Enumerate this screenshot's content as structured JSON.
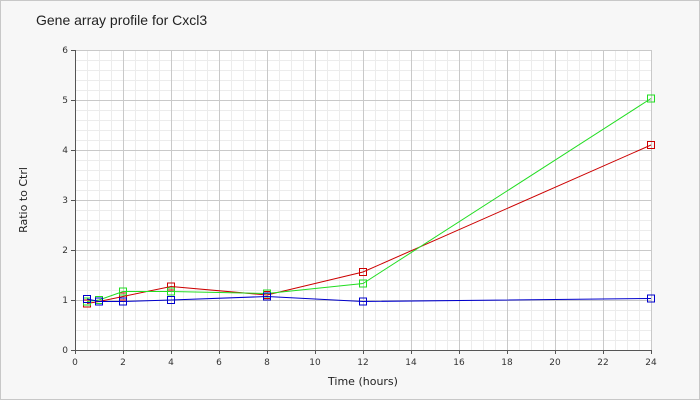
{
  "chart_data": {
    "type": "line",
    "title": "Gene array profile for Cxcl3",
    "xlabel": "Time (hours)",
    "ylabel": "Ratio to Ctrl",
    "xlim": [
      0,
      24
    ],
    "ylim": [
      0,
      6
    ],
    "x_ticks": [
      0,
      2,
      4,
      6,
      8,
      10,
      12,
      14,
      16,
      18,
      20,
      22,
      24
    ],
    "y_ticks": [
      0,
      1,
      2,
      3,
      4,
      5,
      6
    ],
    "x_minor_step": 0.5,
    "y_minor_step": 0.2,
    "grid": true,
    "legend": "none",
    "series": [
      {
        "color": "#cc0000",
        "points": [
          [
            0.5,
            0.93
          ],
          [
            1,
            0.97
          ],
          [
            2,
            1.07
          ],
          [
            4,
            1.27
          ],
          [
            8,
            1.1
          ],
          [
            12,
            1.56
          ],
          [
            24,
            4.1
          ]
        ]
      },
      {
        "color": "#22dd22",
        "points": [
          [
            0.5,
            0.97
          ],
          [
            1,
            1.0
          ],
          [
            2,
            1.17
          ],
          [
            4,
            1.17
          ],
          [
            8,
            1.13
          ],
          [
            12,
            1.33
          ],
          [
            24,
            5.03
          ]
        ]
      },
      {
        "color": "#0000cc",
        "points": [
          [
            0.5,
            1.02
          ],
          [
            1,
            0.97
          ],
          [
            2,
            0.97
          ],
          [
            4,
            1.0
          ],
          [
            8,
            1.07
          ],
          [
            12,
            0.97
          ],
          [
            24,
            1.03
          ]
        ]
      }
    ]
  }
}
